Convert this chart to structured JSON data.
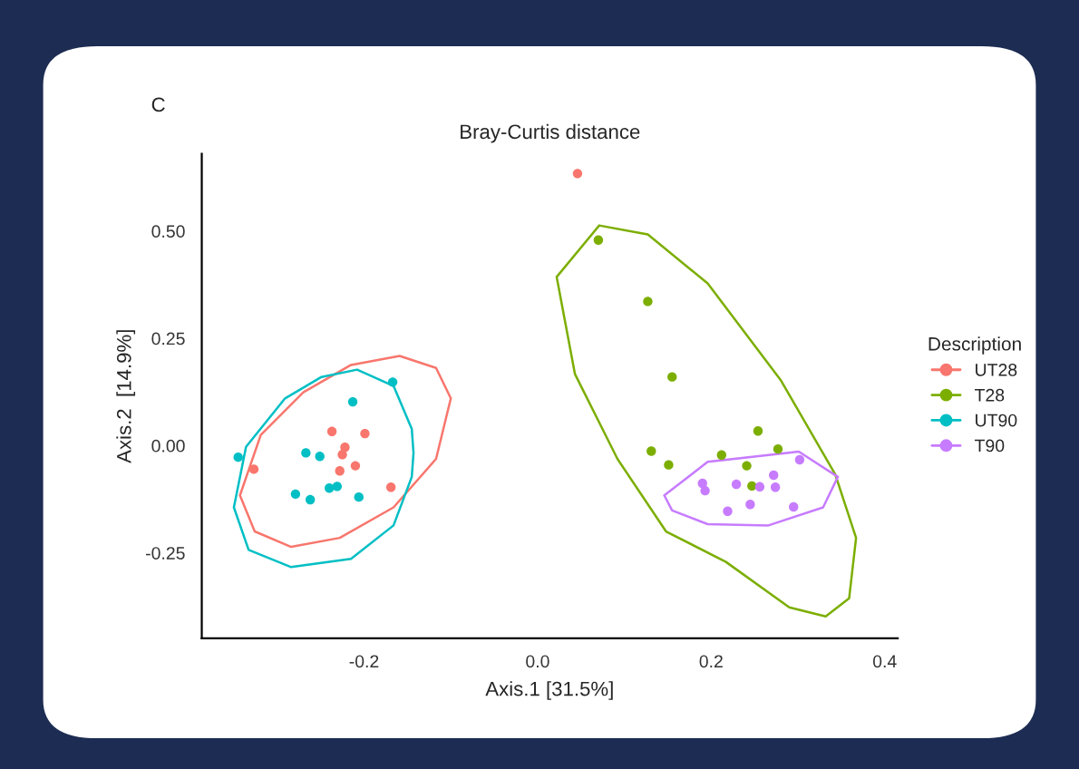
{
  "chart_data": {
    "type": "scatter",
    "title": "Bray-Curtis distance",
    "xlabel": "Axis.1 [31.5%]",
    "ylabel": "Axis.2  [14.9%]",
    "legend_title": "Description",
    "annotations": [
      "C"
    ],
    "xlim": [
      -0.387,
      0.415
    ],
    "ylim": [
      -0.449,
      0.68
    ],
    "xticks": [
      -0.2,
      {
        "value": 0,
        "label": "0.0"
      },
      0.2,
      0.4
    ],
    "yticks": [
      {
        "value": -0.25,
        "label": "-0.25"
      },
      {
        "value": 0,
        "label": "0.00"
      },
      {
        "value": 0.25,
        "label": "0.25"
      },
      {
        "value": 0.5,
        "label": "0.50"
      }
    ],
    "grid": false,
    "legend": "right",
    "marker": "circle",
    "series": [
      {
        "name": "UT28",
        "color": "#f8766d",
        "x": [
          -0.327,
          -0.237,
          -0.199,
          -0.222,
          -0.225,
          -0.21,
          -0.228,
          -0.169,
          0.046
        ],
        "values": [
          -0.055,
          0.033,
          0.028,
          -0.004,
          -0.021,
          -0.047,
          -0.059,
          -0.097,
          0.634
        ]
      },
      {
        "name": "T28",
        "color": "#7cae00",
        "x": [
          0.07,
          0.127,
          0.155,
          0.131,
          0.151,
          0.212,
          0.241,
          0.254,
          0.277,
          0.247
        ],
        "values": [
          0.479,
          0.336,
          0.16,
          -0.013,
          -0.045,
          -0.022,
          -0.047,
          0.034,
          -0.008,
          -0.094
        ]
      },
      {
        "name": "UT90",
        "color": "#00bfc4",
        "x": [
          -0.345,
          -0.267,
          -0.251,
          -0.213,
          -0.167,
          -0.279,
          -0.262,
          -0.24,
          -0.231,
          -0.206
        ],
        "values": [
          -0.027,
          -0.017,
          -0.025,
          0.102,
          0.148,
          -0.113,
          -0.126,
          -0.099,
          -0.095,
          -0.12
        ]
      },
      {
        "name": "T90",
        "color": "#c77cff",
        "x": [
          0.302,
          0.19,
          0.193,
          0.229,
          0.256,
          0.272,
          0.274,
          0.219,
          0.245,
          0.295
        ],
        "values": [
          -0.033,
          -0.088,
          -0.105,
          -0.09,
          -0.096,
          -0.069,
          -0.097,
          -0.153,
          -0.137,
          -0.143
        ]
      },
      {
        "type": "line",
        "marker": "none",
        "color": "#f8766d",
        "x": [
          -0.343,
          -0.319,
          -0.27,
          -0.215,
          -0.159,
          -0.117,
          -0.1,
          null,
          -0.343,
          -0.326,
          -0.284,
          -0.228,
          -0.166,
          -0.117,
          -0.1
        ],
        "values": [
          -0.116,
          0.025,
          0.124,
          0.188,
          0.209,
          0.181,
          0.11,
          null,
          -0.116,
          -0.2,
          -0.236,
          -0.215,
          -0.144,
          -0.031,
          0.11
        ]
      },
      {
        "type": "line",
        "marker": "none",
        "color": "#7cae00",
        "x": [
          0.022,
          0.071,
          0.127,
          0.196,
          0.28,
          0.343,
          0.367,
          null,
          0.022,
          0.043,
          0.092,
          0.148,
          0.217,
          0.29,
          0.332,
          0.359,
          0.367
        ],
        "values": [
          0.393,
          0.513,
          0.492,
          0.378,
          0.153,
          -0.067,
          -0.215,
          null,
          0.393,
          0.167,
          -0.031,
          -0.2,
          -0.271,
          -0.377,
          -0.398,
          -0.356,
          -0.215
        ]
      },
      {
        "type": "line",
        "marker": "none",
        "color": "#00bfc4",
        "x": [
          -0.35,
          -0.336,
          -0.291,
          -0.249,
          -0.208,
          -0.166,
          -0.145,
          -0.143,
          null,
          -0.35,
          -0.333,
          -0.284,
          -0.215,
          -0.166,
          -0.145,
          -0.143
        ],
        "values": [
          -0.144,
          -0.003,
          0.11,
          0.16,
          0.177,
          0.139,
          0.039,
          -0.017,
          null,
          -0.144,
          -0.243,
          -0.283,
          -0.264,
          -0.186,
          -0.073,
          -0.017
        ]
      },
      {
        "type": "line",
        "marker": "none",
        "color": "#c77cff",
        "x": [
          0.146,
          0.196,
          0.301,
          0.346,
          null,
          0.146,
          0.155,
          0.196,
          0.266,
          0.329,
          0.346
        ],
        "values": [
          -0.116,
          -0.038,
          -0.014,
          -0.073,
          null,
          -0.116,
          -0.151,
          -0.183,
          -0.186,
          -0.144,
          -0.073
        ]
      }
    ]
  }
}
